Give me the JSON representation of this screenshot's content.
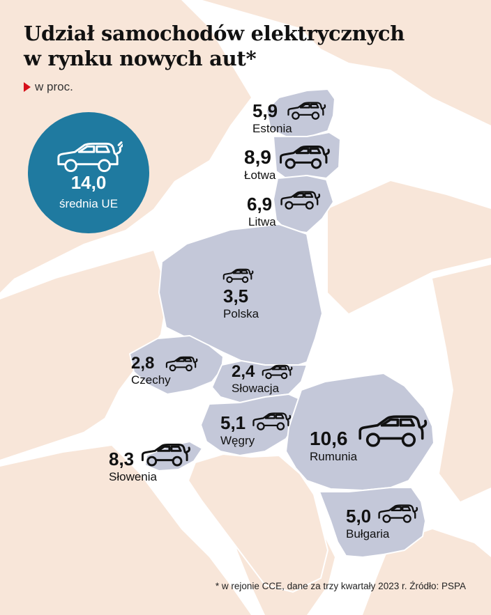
{
  "title_line1": "Udział samochodów elektrycznych",
  "title_line2": "w rynku nowych aut*",
  "subtitle": "w proc.",
  "average": {
    "value": "14,0",
    "label": "średnia UE"
  },
  "countries": [
    {
      "name": "Estonia",
      "value": "5,9"
    },
    {
      "name": "Łotwa",
      "value": "8,9"
    },
    {
      "name": "Litwa",
      "value": "6,9"
    },
    {
      "name": "Polska",
      "value": "3,5"
    },
    {
      "name": "Czechy",
      "value": "2,8"
    },
    {
      "name": "Słowacja",
      "value": "2,4"
    },
    {
      "name": "Węgry",
      "value": "5,1"
    },
    {
      "name": "Słowenia",
      "value": "8,3"
    },
    {
      "name": "Rumunia",
      "value": "10,6"
    },
    {
      "name": "Bułgaria",
      "value": "5,0"
    }
  ],
  "footnote": "* w rejonie CCE, dane za trzy kwartały 2023 r. Źródło: PSPA",
  "colors": {
    "highlight": "#c4c8d9",
    "land": "#f8e6d9",
    "sea": "#ffffff",
    "circle": "#1f7aa0",
    "accent": "#d6101a"
  }
}
